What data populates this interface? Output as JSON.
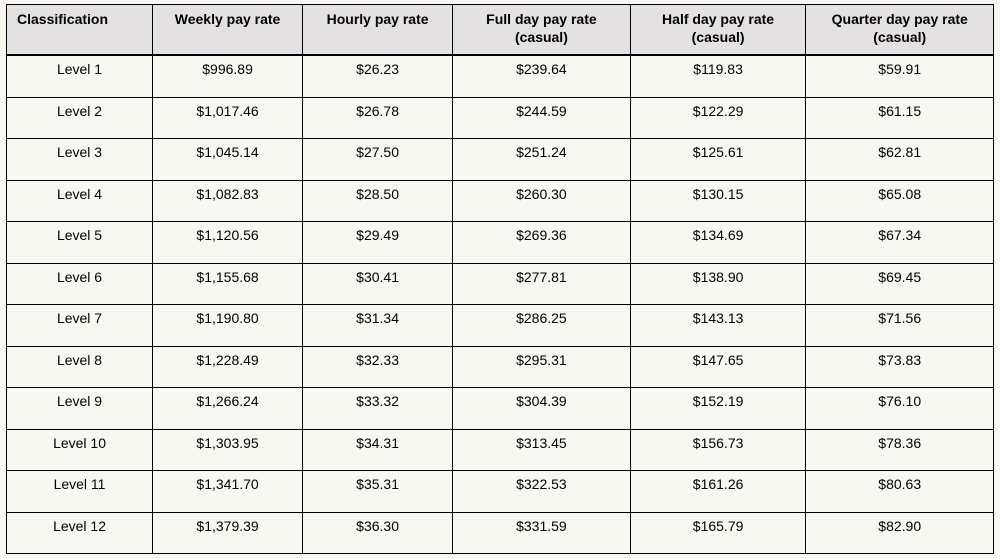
{
  "table": {
    "type": "table",
    "background_color": "#f7f7f2",
    "header_background_color": "#e3e1e1",
    "border_color": "#000000",
    "text_color": "#000000",
    "font_family": "Arial",
    "font_size_pt": 11,
    "header_font_weight": "bold",
    "body_font_weight": "normal",
    "col_widths_pct": [
      14.8,
      15.2,
      15.2,
      18.0,
      17.8,
      19.0
    ],
    "columns": [
      {
        "line1": "Classification",
        "line2": "",
        "align": "left"
      },
      {
        "line1": "Weekly pay rate",
        "line2": "",
        "align": "center"
      },
      {
        "line1": "Hourly pay rate",
        "line2": "",
        "align": "center"
      },
      {
        "line1": "Full day pay rate",
        "line2": "(casual)",
        "align": "center"
      },
      {
        "line1": "Half day pay rate",
        "line2": "(casual)",
        "align": "center"
      },
      {
        "line1": "Quarter day pay rate",
        "line2": "(casual)",
        "align": "center"
      }
    ],
    "rows": [
      [
        "Level 1",
        "$996.89",
        "$26.23",
        "$239.64",
        "$119.83",
        "$59.91"
      ],
      [
        "Level 2",
        "$1,017.46",
        "$26.78",
        "$244.59",
        "$122.29",
        "$61.15"
      ],
      [
        "Level 3",
        "$1,045.14",
        "$27.50",
        "$251.24",
        "$125.61",
        "$62.81"
      ],
      [
        "Level 4",
        "$1,082.83",
        "$28.50",
        "$260.30",
        "$130.15",
        "$65.08"
      ],
      [
        "Level 5",
        "$1,120.56",
        "$29.49",
        "$269.36",
        "$134.69",
        "$67.34"
      ],
      [
        "Level 6",
        "$1,155.68",
        "$30.41",
        "$277.81",
        "$138.90",
        "$69.45"
      ],
      [
        "Level 7",
        "$1,190.80",
        "$31.34",
        "$286.25",
        "$143.13",
        "$71.56"
      ],
      [
        "Level 8",
        "$1,228.49",
        "$32.33",
        "$295.31",
        "$147.65",
        "$73.83"
      ],
      [
        "Level 9",
        "$1,266.24",
        "$33.32",
        "$304.39",
        "$152.19",
        "$76.10"
      ],
      [
        "Level 10",
        "$1,303.95",
        "$34.31",
        "$313.45",
        "$156.73",
        "$78.36"
      ],
      [
        "Level 11",
        "$1,341.70",
        "$35.31",
        "$322.53",
        "$161.26",
        "$80.63"
      ],
      [
        "Level 12",
        "$1,379.39",
        "$36.30",
        "$331.59",
        "$165.79",
        "$82.90"
      ]
    ]
  }
}
